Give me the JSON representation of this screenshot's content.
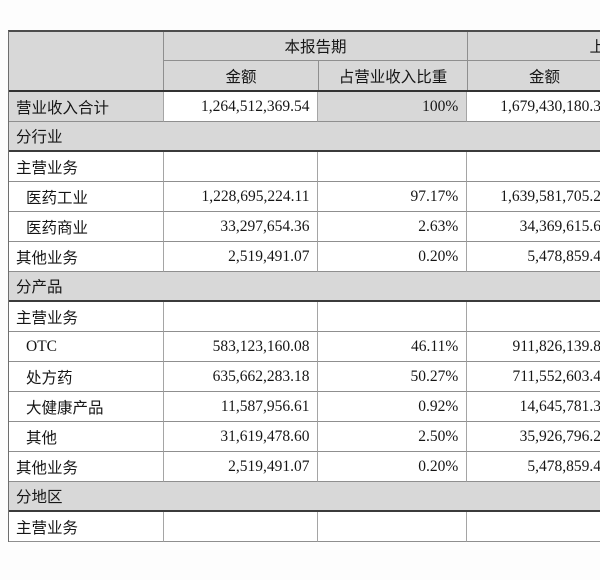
{
  "table": {
    "header": {
      "current_period": "本报告期",
      "prior_period_partial": "上",
      "amount": "金额",
      "ratio": "占营业收入比重",
      "amount_prior": "金额"
    },
    "rows": [
      {
        "type": "total",
        "label": "营业收入合计",
        "amount": "1,264,512,369.54",
        "ratio": "100%",
        "amount_prior": "1,679,430,180.3"
      },
      {
        "type": "section",
        "label": "分行业"
      },
      {
        "type": "data",
        "label": "主营业务",
        "amount": "",
        "ratio": "",
        "amount_prior": ""
      },
      {
        "type": "data",
        "label": "医药工业",
        "indent": true,
        "amount": "1,228,695,224.11",
        "ratio": "97.17%",
        "amount_prior": "1,639,581,705.2"
      },
      {
        "type": "data",
        "label": "医药商业",
        "indent": true,
        "amount": "33,297,654.36",
        "ratio": "2.63%",
        "amount_prior": "34,369,615.6"
      },
      {
        "type": "data",
        "label": "其他业务",
        "amount": "2,519,491.07",
        "ratio": "0.20%",
        "amount_prior": "5,478,859.4"
      },
      {
        "type": "section",
        "label": "分产品"
      },
      {
        "type": "data",
        "label": "主营业务",
        "amount": "",
        "ratio": "",
        "amount_prior": ""
      },
      {
        "type": "data",
        "label": "OTC",
        "indent": true,
        "amount": "583,123,160.08",
        "ratio": "46.11%",
        "amount_prior": "911,826,139.8"
      },
      {
        "type": "data",
        "label": "处方药",
        "indent": true,
        "amount": "635,662,283.18",
        "ratio": "50.27%",
        "amount_prior": "711,552,603.4"
      },
      {
        "type": "data",
        "label": "大健康产品",
        "indent": true,
        "amount": "11,587,956.61",
        "ratio": "0.92%",
        "amount_prior": "14,645,781.3"
      },
      {
        "type": "data",
        "label": "其他",
        "indent": true,
        "amount": "31,619,478.60",
        "ratio": "2.50%",
        "amount_prior": "35,926,796.2"
      },
      {
        "type": "data",
        "label": "其他业务",
        "amount": "2,519,491.07",
        "ratio": "0.20%",
        "amount_prior": "5,478,859.4"
      },
      {
        "type": "section",
        "label": "分地区"
      },
      {
        "type": "data",
        "label": "主营业务",
        "amount": "",
        "ratio": "",
        "amount_prior": ""
      }
    ],
    "colors": {
      "cell_shade": "#d8d8d8",
      "thick_rule": "#3b3b3b",
      "thin_rule": "#8f8f8f"
    }
  }
}
